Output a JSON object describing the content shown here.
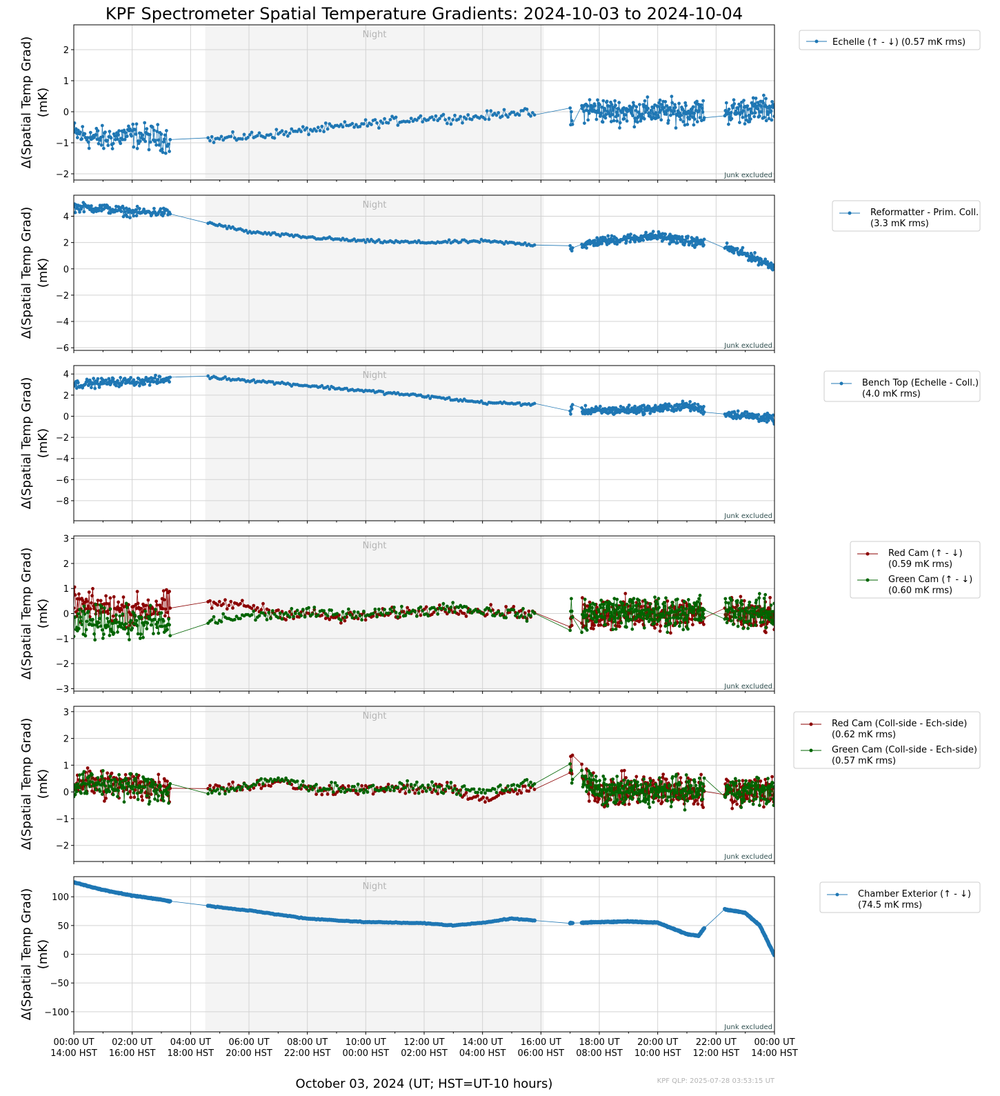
{
  "figure": {
    "title": "KPF Spectrometer Spatial Temperature Gradients: 2024-10-03 to 2024-10-04",
    "xlabel": "October 03, 2024 (UT; HST=UT-10 hours)",
    "footer": "KPF QLP: 2025-07-28 03:53:15 UT",
    "night_label": "Night",
    "junk_label": "Junk excluded",
    "x_ticks": [
      {
        "hour": 0,
        "ut": "00:00 UT",
        "hst": "14:00 HST"
      },
      {
        "hour": 2,
        "ut": "02:00 UT",
        "hst": "16:00 HST"
      },
      {
        "hour": 4,
        "ut": "04:00 UT",
        "hst": "18:00 HST"
      },
      {
        "hour": 6,
        "ut": "06:00 UT",
        "hst": "20:00 HST"
      },
      {
        "hour": 8,
        "ut": "08:00 UT",
        "hst": "22:00 HST"
      },
      {
        "hour": 10,
        "ut": "10:00 UT",
        "hst": "00:00 HST"
      },
      {
        "hour": 12,
        "ut": "12:00 UT",
        "hst": "02:00 HST"
      },
      {
        "hour": 14,
        "ut": "14:00 UT",
        "hst": "04:00 HST"
      },
      {
        "hour": 16,
        "ut": "16:00 UT",
        "hst": "06:00 HST"
      },
      {
        "hour": 18,
        "ut": "18:00 UT",
        "hst": "08:00 HST"
      },
      {
        "hour": 20,
        "ut": "20:00 UT",
        "hst": "10:00 HST"
      },
      {
        "hour": 22,
        "ut": "22:00 UT",
        "hst": "12:00 HST"
      },
      {
        "hour": 24,
        "ut": "00:00 UT",
        "hst": "14:00 HST"
      }
    ],
    "colors": {
      "blue": "#1f77b4",
      "red": "#8b0000",
      "green": "#006400",
      "night_shade": "#f4f4f4",
      "grid": "#d3d3d3"
    }
  },
  "chart_data": [
    {
      "type": "line",
      "ylabel": [
        "Δ(Spatial Temp Grad)",
        "(mK)"
      ],
      "xlim": [
        0,
        24
      ],
      "ylim": [
        -2.2,
        2.8
      ],
      "yticks": [
        -2,
        -1,
        0,
        1,
        2
      ],
      "night_x": [
        4.5,
        16.1
      ],
      "series": [
        {
          "name": "Echelle (↑  -  ↓) (0.57 mK rms)",
          "color": "blue",
          "noise": 0.35,
          "points": [
            [
              0,
              -0.7
            ],
            [
              0.5,
              -0.8
            ],
            [
              1.0,
              -0.9
            ],
            [
              1.5,
              -0.8
            ],
            [
              2.0,
              -0.75
            ],
            [
              2.5,
              -0.8
            ],
            [
              3.0,
              -0.85
            ],
            [
              3.3,
              -0.9
            ],
            [
              4.6,
              -0.9
            ],
            [
              6,
              -0.8
            ],
            [
              8,
              -0.6
            ],
            [
              10,
              -0.4
            ],
            [
              12,
              -0.2
            ],
            [
              13.5,
              -0.2
            ],
            [
              14.5,
              -0.1
            ],
            [
              15,
              0.0
            ],
            [
              16,
              -0.1
            ],
            [
              17,
              -0.3
            ],
            [
              17.5,
              0.1
            ],
            [
              18.5,
              0.0
            ],
            [
              20,
              0.0
            ],
            [
              21.5,
              0.0
            ],
            [
              22.3,
              0.0
            ],
            [
              24,
              0.1
            ]
          ]
        }
      ]
    },
    {
      "type": "line",
      "ylabel": [
        "Δ(Spatial Temp Grad)",
        "(mK)"
      ],
      "xlim": [
        0,
        24
      ],
      "ylim": [
        -6.2,
        5.6
      ],
      "yticks": [
        -6,
        -4,
        -2,
        0,
        2,
        4
      ],
      "night_x": [
        4.5,
        16.1
      ],
      "series": [
        {
          "name": "Reformatter - Prim. Coll.",
          "name_extra": " (3.3 mK rms)",
          "color": "blue",
          "noise": 0.3,
          "points": [
            [
              0,
              4.7
            ],
            [
              1,
              4.6
            ],
            [
              2,
              4.3
            ],
            [
              3,
              4.3
            ],
            [
              3.5,
              4.2
            ],
            [
              4.6,
              3.5
            ],
            [
              6,
              2.8
            ],
            [
              8,
              2.4
            ],
            [
              10,
              2.1
            ],
            [
              12,
              2.0
            ],
            [
              14,
              2.1
            ],
            [
              16,
              1.8
            ],
            [
              17,
              1.6
            ],
            [
              18,
              2.1
            ],
            [
              19,
              2.3
            ],
            [
              20,
              2.5
            ],
            [
              21,
              2.1
            ],
            [
              22,
              1.9
            ],
            [
              23,
              1.1
            ],
            [
              24,
              0.2
            ]
          ]
        }
      ]
    },
    {
      "type": "line",
      "ylabel": [
        "Δ(Spatial Temp Grad)",
        "(mK)"
      ],
      "xlim": [
        0,
        24
      ],
      "ylim": [
        -9.9,
        4.8
      ],
      "yticks": [
        -8,
        -6,
        -4,
        -2,
        0,
        2,
        4
      ],
      "night_x": [
        4.5,
        16.1
      ],
      "series": [
        {
          "name": "Bench Top (Echelle - Coll.)",
          "name_extra": " (4.0 mK rms)",
          "color": "blue",
          "noise": 0.35,
          "points": [
            [
              0,
              3.0
            ],
            [
              1,
              3.2
            ],
            [
              2,
              3.3
            ],
            [
              3,
              3.4
            ],
            [
              3.5,
              3.7
            ],
            [
              4.6,
              3.7
            ],
            [
              6,
              3.4
            ],
            [
              8,
              2.9
            ],
            [
              10,
              2.4
            ],
            [
              12,
              1.9
            ],
            [
              13,
              1.6
            ],
            [
              14,
              1.3
            ],
            [
              16,
              1.1
            ],
            [
              17,
              0.6
            ],
            [
              18,
              0.5
            ],
            [
              19,
              0.6
            ],
            [
              20,
              0.7
            ],
            [
              21,
              1.0
            ],
            [
              21.6,
              0.6
            ],
            [
              22,
              0.3
            ],
            [
              23,
              0.1
            ],
            [
              24,
              -0.3
            ]
          ]
        }
      ]
    },
    {
      "type": "line",
      "ylabel": [
        "Δ(Spatial Temp Grad)",
        "(mK)"
      ],
      "xlim": [
        0,
        24
      ],
      "ylim": [
        -3.1,
        3.1
      ],
      "yticks": [
        -3,
        -2,
        -1,
        0,
        1,
        2,
        3
      ],
      "night_x": [
        4.5,
        16.1
      ],
      "series": [
        {
          "name": "Red Cam (↑  -  ↓)",
          "name_extra": " (0.59 mK rms)",
          "color": "red",
          "noise": 0.55,
          "points": [
            [
              0,
              0.3
            ],
            [
              1,
              0.2
            ],
            [
              2,
              0.1
            ],
            [
              3,
              0.3
            ],
            [
              3.3,
              0.2
            ],
            [
              4.6,
              0.3
            ],
            [
              5,
              0.4
            ],
            [
              6,
              0.3
            ],
            [
              7,
              0.0
            ],
            [
              8,
              0.0
            ],
            [
              9,
              -0.2
            ],
            [
              10,
              -0.1
            ],
            [
              12,
              0.1
            ],
            [
              13,
              0.2
            ],
            [
              14,
              0.1
            ],
            [
              15,
              0.1
            ],
            [
              16,
              -0.1
            ],
            [
              17,
              -0.3
            ],
            [
              18,
              0.0
            ],
            [
              20,
              0.0
            ],
            [
              22,
              0.0
            ],
            [
              24,
              -0.2
            ]
          ]
        },
        {
          "name": "Green Cam (↑  -  ↓)",
          "name_extra": " (0.60 mK rms)",
          "color": "green",
          "noise": 0.55,
          "points": [
            [
              0,
              -0.5
            ],
            [
              1,
              -0.3
            ],
            [
              2,
              -0.4
            ],
            [
              3,
              -0.4
            ],
            [
              3.3,
              -0.7
            ],
            [
              4.6,
              -0.3
            ],
            [
              6,
              -0.1
            ],
            [
              8,
              0.0
            ],
            [
              10,
              0.0
            ],
            [
              12,
              0.1
            ],
            [
              13,
              0.3
            ],
            [
              14,
              0.1
            ],
            [
              16,
              -0.1
            ],
            [
              17,
              -0.2
            ],
            [
              18,
              0.1
            ],
            [
              20,
              0.0
            ],
            [
              22,
              0.1
            ],
            [
              24,
              0.0
            ]
          ]
        }
      ]
    },
    {
      "type": "line",
      "ylabel": [
        "Δ(Spatial Temp Grad)",
        "(mK)"
      ],
      "xlim": [
        0,
        24
      ],
      "ylim": [
        -2.6,
        3.2
      ],
      "yticks": [
        -2,
        -1,
        0,
        1,
        2,
        3
      ],
      "night_x": [
        4.5,
        16.1
      ],
      "series": [
        {
          "name": "Red Cam (Coll-side - Ech-side)",
          "name_extra": " (0.62 mK rms)",
          "color": "red",
          "noise": 0.5,
          "points": [
            [
              0,
              0.4
            ],
            [
              1,
              0.3
            ],
            [
              2,
              0.2
            ],
            [
              3,
              0.2
            ],
            [
              3.3,
              0.2
            ],
            [
              4.6,
              0.2
            ],
            [
              6,
              0.2
            ],
            [
              7,
              0.4
            ],
            [
              8,
              0.1
            ],
            [
              10,
              0.1
            ],
            [
              12,
              0.1
            ],
            [
              13,
              0.1
            ],
            [
              14,
              -0.3
            ],
            [
              15,
              0.0
            ],
            [
              16,
              0.2
            ],
            [
              17,
              0.9
            ],
            [
              18,
              0.0
            ],
            [
              20,
              0.1
            ],
            [
              22,
              0.0
            ],
            [
              24,
              0.1
            ]
          ]
        },
        {
          "name": "Green Cam (Coll-side - Ech-side)",
          "name_extra": " (0.57 mK rms)",
          "color": "green",
          "noise": 0.45,
          "points": [
            [
              0,
              0.2
            ],
            [
              1,
              0.3
            ],
            [
              2,
              0.2
            ],
            [
              3,
              0.1
            ],
            [
              3.3,
              0.0
            ],
            [
              4.6,
              0.0
            ],
            [
              6,
              0.2
            ],
            [
              7,
              0.5
            ],
            [
              8,
              0.2
            ],
            [
              10,
              0.1
            ],
            [
              12,
              0.2
            ],
            [
              13,
              0.1
            ],
            [
              14,
              0.0
            ],
            [
              16,
              0.4
            ],
            [
              17,
              0.9
            ],
            [
              18,
              0.0
            ],
            [
              20,
              0.0
            ],
            [
              22,
              0.1
            ],
            [
              24,
              0.0
            ]
          ]
        }
      ]
    },
    {
      "type": "line",
      "ylabel": [
        "Δ(Spatial Temp Grad)",
        "(mK)"
      ],
      "xlim": [
        0,
        24
      ],
      "ylim": [
        -135,
        135
      ],
      "yticks": [
        -100,
        -50,
        0,
        50,
        100
      ],
      "night_x": [
        4.5,
        16.1
      ],
      "series": [
        {
          "name": "Chamber Exterior (↑  -  ↓)",
          "name_extra": " (74.5 mK rms)",
          "color": "blue",
          "noise": 0.4,
          "points": [
            [
              0,
              125
            ],
            [
              1,
              112
            ],
            [
              2,
              102
            ],
            [
              3,
              95
            ],
            [
              3.5,
              90
            ],
            [
              4.6,
              84
            ],
            [
              6,
              76
            ],
            [
              8,
              62
            ],
            [
              10,
              56
            ],
            [
              12,
              54
            ],
            [
              13,
              50
            ],
            [
              14,
              55
            ],
            [
              15,
              62
            ],
            [
              16,
              58
            ],
            [
              17,
              54
            ],
            [
              18,
              56
            ],
            [
              19,
              57
            ],
            [
              20,
              55
            ],
            [
              20.5,
              45
            ],
            [
              21,
              35
            ],
            [
              21.4,
              32
            ],
            [
              21.8,
              60
            ],
            [
              22.1,
              80
            ],
            [
              23,
              72
            ],
            [
              23.5,
              50
            ],
            [
              24,
              -2
            ]
          ]
        }
      ]
    }
  ]
}
